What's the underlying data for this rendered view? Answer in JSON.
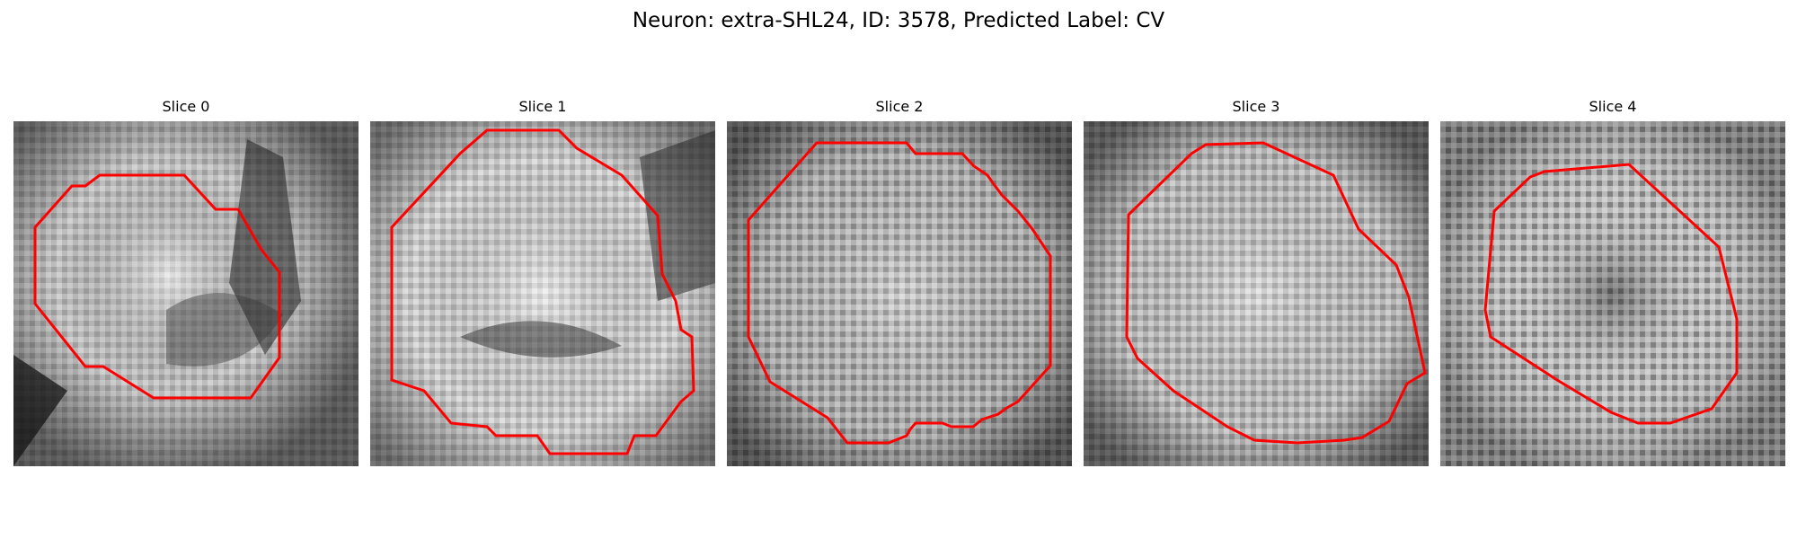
{
  "figure": {
    "title": "Neuron: extra-SHL24, ID: 3578, Predicted Label: CV"
  },
  "contour_color": "#ff0000",
  "panels": [
    {
      "title": "Slice 0",
      "icon": "grayscale-em-slice-with-red-contour"
    },
    {
      "title": "Slice 1",
      "icon": "grayscale-em-slice-with-red-contour"
    },
    {
      "title": "Slice 2",
      "icon": "grayscale-em-slice-with-red-contour"
    },
    {
      "title": "Slice 3",
      "icon": "grayscale-em-slice-with-red-contour"
    },
    {
      "title": "Slice 4",
      "icon": "grayscale-em-slice-with-red-contour"
    }
  ]
}
